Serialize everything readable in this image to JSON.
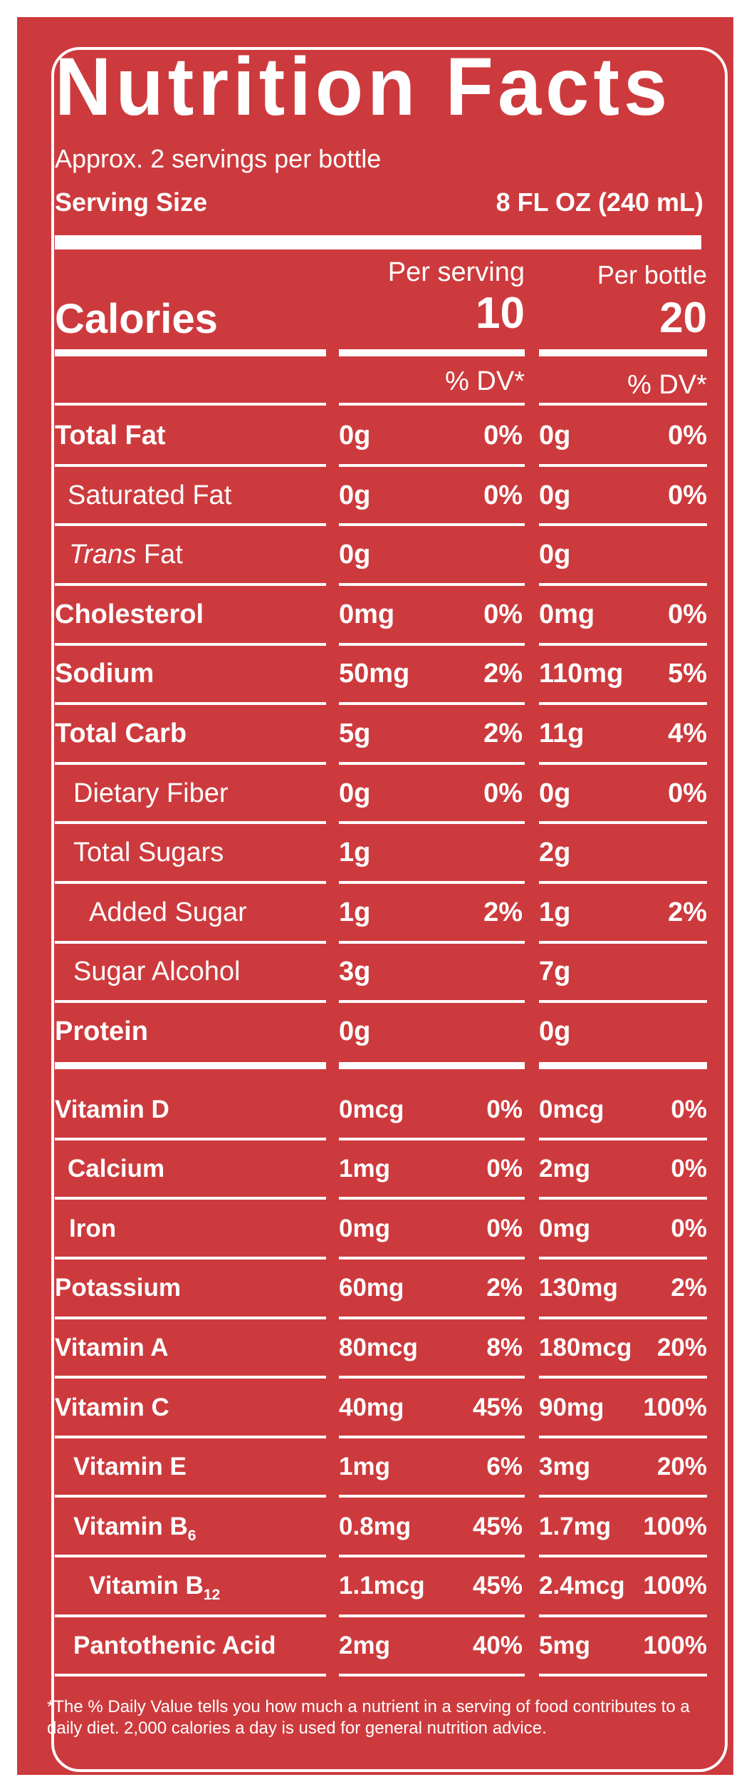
{
  "title": "Nutrition Facts",
  "servings": "Approx. 2 servings per bottle",
  "serving_size": {
    "label": "Serving Size",
    "value": "8 FL OZ (240 mL)"
  },
  "columns": [
    "Per serving",
    "Per bottle"
  ],
  "calories": {
    "label": "Calories",
    "per_serving": "10",
    "per_bottle": "20"
  },
  "dv_headers": [
    "% DV*",
    "% DV*"
  ],
  "nutrients": [
    {
      "name": "Total Fat",
      "serving": "0g",
      "serving_dv": "0%",
      "bottle": "0g",
      "bottle_dv": "0%"
    },
    {
      "name": "Saturated Fat",
      "serving": "0g",
      "serving_dv": "0%",
      "bottle": "0g",
      "bottle_dv": "0%"
    },
    {
      "name_italic": "Trans",
      "name": " Fat",
      "serving": "0g",
      "bottle": "0g"
    },
    {
      "name": "Cholesterol",
      "serving": "0mg",
      "serving_dv": "0%",
      "bottle": "0mg",
      "bottle_dv": "0%"
    },
    {
      "name": "Sodium",
      "serving": "50mg",
      "serving_dv": "2%",
      "bottle": "110mg",
      "bottle_dv": "5%"
    },
    {
      "name": "Total Carb",
      "serving": "5g",
      "serving_dv": "2%",
      "bottle": "11g",
      "bottle_dv": "4%"
    },
    {
      "name": "Dietary Fiber",
      "serving": "0g",
      "serving_dv": "0%",
      "bottle": "0g",
      "bottle_dv": "0%"
    },
    {
      "name": "Total Sugars",
      "serving": "1g",
      "bottle": "2g"
    },
    {
      "name": "Added Sugar",
      "serving": "1g",
      "serving_dv": "2%",
      "bottle": "1g",
      "bottle_dv": "2%"
    },
    {
      "name": "Sugar Alcohol",
      "serving": "3g",
      "bottle": "7g"
    },
    {
      "name": "Protein",
      "serving": "0g",
      "bottle": "0g"
    }
  ],
  "vitamins": [
    {
      "name": "Vitamin D",
      "serving": "0mcg",
      "serving_dv": "0%",
      "bottle": "0mcg",
      "bottle_dv": "0%"
    },
    {
      "name": "Calcium",
      "serving": "1mg",
      "serving_dv": "0%",
      "bottle": "2mg",
      "bottle_dv": "0%"
    },
    {
      "name": "Iron",
      "serving": "0mg",
      "serving_dv": "0%",
      "bottle": "0mg",
      "bottle_dv": "0%"
    },
    {
      "name": "Potassium",
      "serving": "60mg",
      "serving_dv": "2%",
      "bottle": "130mg",
      "bottle_dv": "2%"
    },
    {
      "name": "Vitamin A",
      "serving": "80mcg",
      "serving_dv": "8%",
      "bottle": "180mcg",
      "bottle_dv": "20%"
    },
    {
      "name": "Vitamin C",
      "serving": "40mg",
      "serving_dv": "45%",
      "bottle": "90mg",
      "bottle_dv": "100%"
    },
    {
      "name": "Vitamin E",
      "serving": "1mg",
      "serving_dv": "6%",
      "bottle": "3mg",
      "bottle_dv": "20%"
    },
    {
      "name": "Vitamin B",
      "name_sub": "6",
      "serving": "0.8mg",
      "serving_dv": "45%",
      "bottle": "1.7mg",
      "bottle_dv": "100%"
    },
    {
      "name": "Vitamin B",
      "name_sub": "12",
      "serving": "1.1mcg",
      "serving_dv": "45%",
      "bottle": "2.4mcg",
      "bottle_dv": "100%"
    },
    {
      "name": "Pantothenic Acid",
      "serving": "2mg",
      "serving_dv": "40%",
      "bottle": "5mg",
      "bottle_dv": "100%"
    }
  ],
  "footnote": "*The % Daily Value tells you how much a nutrient in a serving of food contributes to a daily diet. 2,000 calories a day is used for general nutrition advice."
}
